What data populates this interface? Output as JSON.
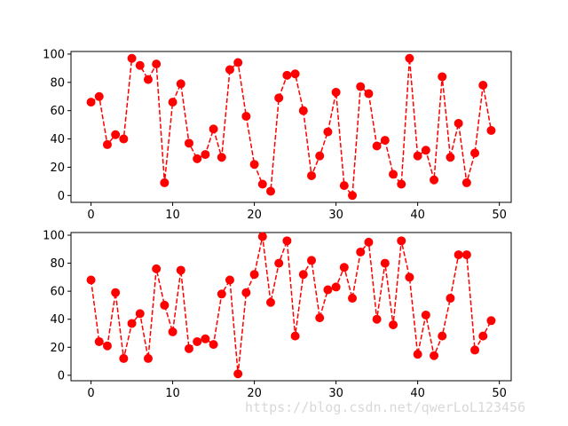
{
  "watermark": "https://blog.csdn.net/qwerLoL123456",
  "colors": {
    "series": "#ff0000",
    "axes": "#000000",
    "background": "#ffffff"
  },
  "chart_data": [
    {
      "type": "line",
      "title": "",
      "xlabel": "",
      "ylabel": "",
      "xlim": [
        -2.45,
        51.45
      ],
      "ylim": [
        -4.85,
        101.85
      ],
      "xticks": [
        0,
        10,
        20,
        30,
        40,
        50
      ],
      "yticks": [
        0,
        20,
        40,
        60,
        80,
        100
      ],
      "grid": false,
      "line_style": "dashed",
      "marker": "circle",
      "x": [
        0,
        1,
        2,
        3,
        4,
        5,
        6,
        7,
        8,
        9,
        10,
        11,
        12,
        13,
        14,
        15,
        16,
        17,
        18,
        19,
        20,
        21,
        22,
        23,
        24,
        25,
        26,
        27,
        28,
        29,
        30,
        31,
        32,
        33,
        34,
        35,
        36,
        37,
        38,
        39,
        40,
        41,
        42,
        43,
        44,
        45,
        46,
        47,
        48,
        49
      ],
      "series": [
        {
          "values": [
            66,
            70,
            36,
            43,
            40,
            97,
            92,
            82,
            93,
            9,
            66,
            79,
            37,
            26,
            29,
            47,
            27,
            89,
            94,
            56,
            22,
            8,
            3,
            69,
            85,
            86,
            60,
            14,
            28,
            45,
            73,
            7,
            0,
            77,
            72,
            35,
            39,
            15,
            8,
            97,
            28,
            32,
            11,
            84,
            27,
            51,
            9,
            30,
            78,
            46
          ]
        }
      ]
    },
    {
      "type": "line",
      "title": "",
      "xlabel": "",
      "ylabel": "",
      "xlim": [
        -2.45,
        51.45
      ],
      "ylim": [
        -3.9,
        101.9
      ],
      "xticks": [
        0,
        10,
        20,
        30,
        40,
        50
      ],
      "yticks": [
        0,
        20,
        40,
        60,
        80,
        100
      ],
      "grid": false,
      "line_style": "dashed",
      "marker": "circle",
      "x": [
        0,
        1,
        2,
        3,
        4,
        5,
        6,
        7,
        8,
        9,
        10,
        11,
        12,
        13,
        14,
        15,
        16,
        17,
        18,
        19,
        20,
        21,
        22,
        23,
        24,
        25,
        26,
        27,
        28,
        29,
        30,
        31,
        32,
        33,
        34,
        35,
        36,
        37,
        38,
        39,
        40,
        41,
        42,
        43,
        44,
        45,
        46,
        47,
        48,
        49
      ],
      "series": [
        {
          "values": [
            68,
            24,
            21,
            59,
            12,
            37,
            44,
            12,
            76,
            50,
            31,
            75,
            19,
            24,
            26,
            22,
            58,
            68,
            1,
            59,
            72,
            99,
            52,
            80,
            96,
            28,
            72,
            82,
            41,
            61,
            63,
            77,
            55,
            88,
            95,
            40,
            80,
            36,
            96,
            70,
            15,
            43,
            14,
            28,
            55,
            86,
            86,
            18,
            28,
            39
          ]
        }
      ]
    }
  ]
}
